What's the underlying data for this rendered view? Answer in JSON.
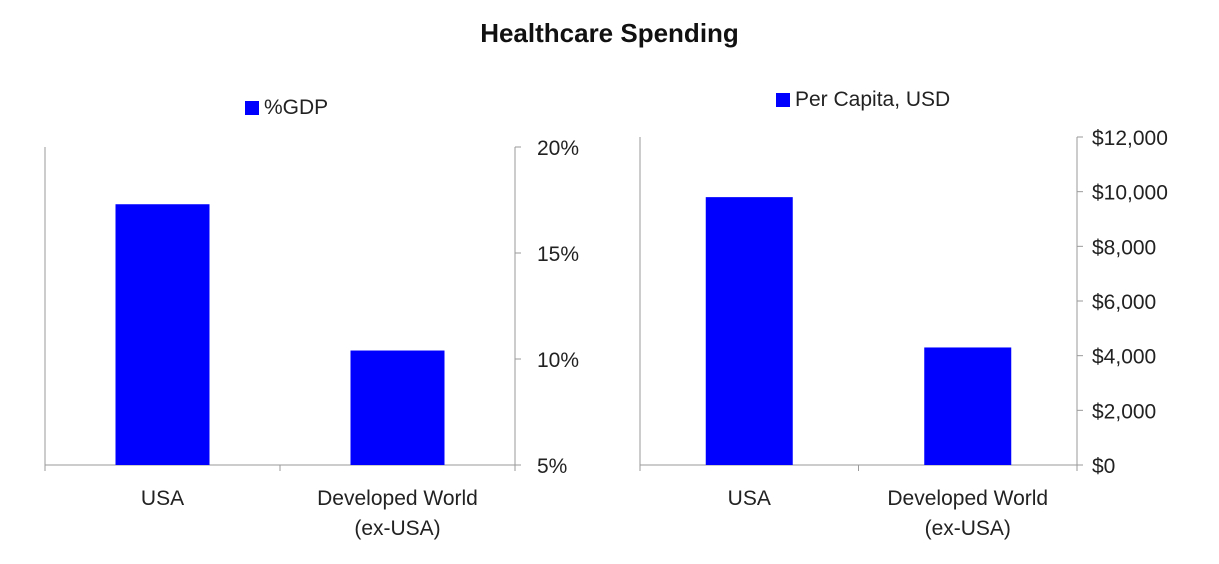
{
  "title": "Healthcare Spending",
  "chart_data": [
    {
      "type": "bar",
      "legend": "%GDP",
      "categories": [
        "USA",
        "Developed World\n(ex-USA)"
      ],
      "values": [
        17.3,
        10.4
      ],
      "ylim": [
        5,
        20
      ],
      "yticks": [
        5,
        10,
        15,
        20
      ],
      "ytick_labels": [
        "5%",
        "10%",
        "15%",
        "20%"
      ],
      "axis_position": "right",
      "color": "#0000ff"
    },
    {
      "type": "bar",
      "legend": "Per Capita, USD",
      "categories": [
        "USA",
        "Developed World\n(ex-USA)"
      ],
      "values": [
        9800,
        4300
      ],
      "ylim": [
        0,
        12000
      ],
      "yticks": [
        0,
        2000,
        4000,
        6000,
        8000,
        10000,
        12000
      ],
      "ytick_labels": [
        "$0",
        "$2,000",
        "$4,000",
        "$6,000",
        "$8,000",
        "$10,000",
        "$12,000"
      ],
      "axis_position": "right",
      "color": "#0000ff"
    }
  ]
}
